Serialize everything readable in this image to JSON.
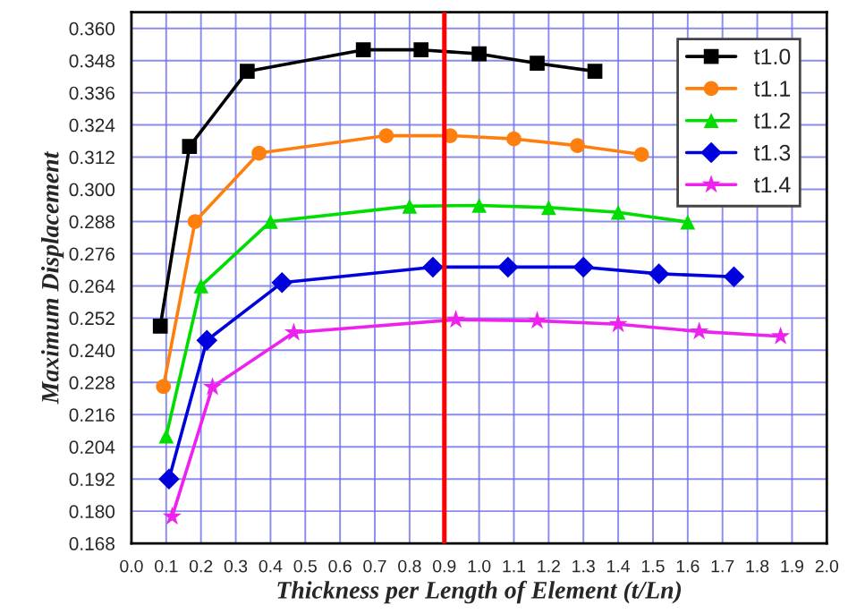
{
  "chart_data": {
    "type": "line",
    "xlabel": "Thickness per Length of Element (t/Ln)",
    "ylabel": "Maximum Displacement",
    "xlim": [
      0,
      2.0
    ],
    "ylim": [
      0.168,
      0.366
    ],
    "xticks": [
      {
        "value": 0,
        "label": "0.0"
      },
      {
        "value": 0.1,
        "label": "0.1"
      },
      {
        "value": 0.2,
        "label": "0.2"
      },
      {
        "value": 0.3,
        "label": "0.3"
      },
      {
        "value": 0.4,
        "label": "0.4"
      },
      {
        "value": 0.5,
        "label": "0.5"
      },
      {
        "value": 0.6,
        "label": "0.6"
      },
      {
        "value": 0.7,
        "label": "0.7"
      },
      {
        "value": 0.8,
        "label": "0.8"
      },
      {
        "value": 0.9,
        "label": "0.9"
      },
      {
        "value": 1.0,
        "label": "1.0"
      },
      {
        "value": 1.1,
        "label": "1.1"
      },
      {
        "value": 1.2,
        "label": "1.2"
      },
      {
        "value": 1.3,
        "label": "1.3"
      },
      {
        "value": 1.4,
        "label": "1.4"
      },
      {
        "value": 1.5,
        "label": "1.5"
      },
      {
        "value": 1.6,
        "label": "1.6"
      },
      {
        "value": 1.7,
        "label": "1.7"
      },
      {
        "value": 1.8,
        "label": "1.8"
      },
      {
        "value": 1.9,
        "label": "1.9"
      },
      {
        "value": 2.0,
        "label": "2.0"
      }
    ],
    "yticks": [
      {
        "value": 0.168,
        "label": "0.168"
      },
      {
        "value": 0.18,
        "label": "0.180"
      },
      {
        "value": 0.192,
        "label": "0.192"
      },
      {
        "value": 0.204,
        "label": "0.204"
      },
      {
        "value": 0.216,
        "label": "0.216"
      },
      {
        "value": 0.228,
        "label": "0.228"
      },
      {
        "value": 0.24,
        "label": "0.240"
      },
      {
        "value": 0.252,
        "label": "0.252"
      },
      {
        "value": 0.264,
        "label": "0.264"
      },
      {
        "value": 0.276,
        "label": "0.276"
      },
      {
        "value": 0.288,
        "label": "0.288"
      },
      {
        "value": 0.3,
        "label": "0.300"
      },
      {
        "value": 0.312,
        "label": "0.312"
      },
      {
        "value": 0.324,
        "label": "0.324"
      },
      {
        "value": 0.336,
        "label": "0.336"
      },
      {
        "value": 0.348,
        "label": "0.348"
      },
      {
        "value": 0.36,
        "label": "0.360"
      }
    ],
    "grid": true,
    "legend": "top right",
    "ref_lines": [
      {
        "axis": "x",
        "value": 0.9,
        "color": "#ff0000"
      }
    ],
    "series": [
      {
        "name": "t1.0",
        "color": "#000000",
        "marker": "square",
        "x": [
          0.083,
          0.167,
          0.333,
          0.667,
          0.833,
          1.0,
          1.167,
          1.333
        ],
        "values": [
          0.249,
          0.316,
          0.344,
          0.352,
          0.352,
          0.3505,
          0.347,
          0.344
        ]
      },
      {
        "name": "t1.1",
        "color": "#ff7f0e",
        "marker": "circle",
        "x": [
          0.092,
          0.183,
          0.367,
          0.733,
          0.917,
          1.1,
          1.283,
          1.467
        ],
        "values": [
          0.2265,
          0.288,
          0.3135,
          0.32,
          0.32,
          0.3188,
          0.3163,
          0.313
        ]
      },
      {
        "name": "t1.2",
        "color": "#00dd00",
        "marker": "triangle",
        "x": [
          0.1,
          0.2,
          0.4,
          0.8,
          1.0,
          1.2,
          1.4,
          1.6
        ],
        "values": [
          0.208,
          0.264,
          0.288,
          0.2937,
          0.294,
          0.2932,
          0.2914,
          0.2878
        ]
      },
      {
        "name": "t1.3",
        "color": "#0000dd",
        "marker": "diamond",
        "x": [
          0.108,
          0.217,
          0.433,
          0.867,
          1.083,
          1.3,
          1.517,
          1.733
        ],
        "values": [
          0.192,
          0.2437,
          0.2652,
          0.271,
          0.271,
          0.271,
          0.2685,
          0.2674
        ]
      },
      {
        "name": "t1.4",
        "color": "#ee22ee",
        "marker": "star",
        "x": [
          0.117,
          0.233,
          0.467,
          0.933,
          1.167,
          1.4,
          1.633,
          1.867
        ],
        "values": [
          0.178,
          0.2263,
          0.2466,
          0.2514,
          0.251,
          0.2497,
          0.247,
          0.2452
        ]
      }
    ]
  }
}
